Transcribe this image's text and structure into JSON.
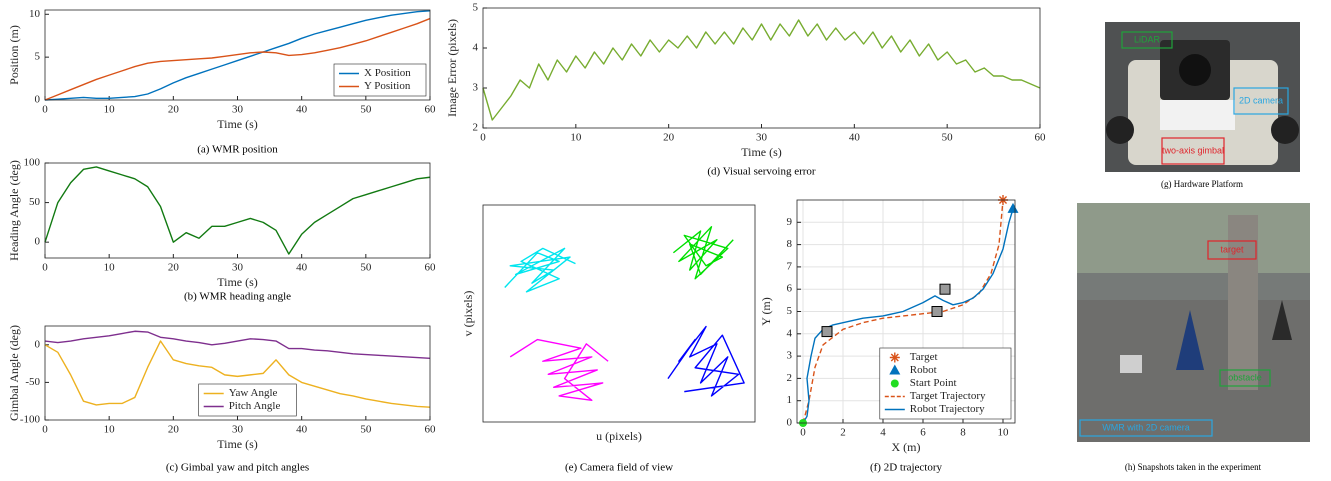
{
  "chart_data": [
    {
      "type": "line",
      "caption": "(a) WMR position",
      "xlabel": "Time (s)",
      "ylabel": "Position (m)",
      "x": [
        0,
        2,
        4,
        6,
        8,
        10,
        12,
        14,
        16,
        18,
        20,
        22,
        24,
        26,
        28,
        30,
        32,
        34,
        36,
        38,
        40,
        42,
        44,
        46,
        48,
        50,
        52,
        54,
        56,
        58,
        60
      ],
      "xlim": [
        0,
        60
      ],
      "xticks": [
        0,
        10,
        20,
        30,
        40,
        50,
        60
      ],
      "ylim": [
        0,
        10.5
      ],
      "yticks": [
        0,
        5,
        10
      ],
      "legend": "lower right",
      "series": [
        {
          "name": "X Position",
          "color": "#0072bd",
          "values": [
            0,
            0.1,
            0.2,
            0.3,
            0.2,
            0.2,
            0.3,
            0.4,
            0.7,
            1.3,
            2.0,
            2.6,
            3.1,
            3.6,
            4.1,
            4.6,
            5.1,
            5.6,
            6.1,
            6.6,
            7.2,
            7.7,
            8.1,
            8.5,
            8.9,
            9.3,
            9.6,
            9.9,
            10.1,
            10.3,
            10.4
          ]
        },
        {
          "name": "Y Position",
          "color": "#d95319",
          "values": [
            0,
            0.6,
            1.2,
            1.8,
            2.4,
            2.9,
            3.4,
            3.9,
            4.3,
            4.5,
            4.6,
            4.7,
            4.8,
            4.9,
            5.1,
            5.3,
            5.5,
            5.6,
            5.5,
            5.2,
            5.3,
            5.5,
            5.8,
            6.1,
            6.5,
            6.9,
            7.4,
            7.9,
            8.4,
            8.9,
            9.5
          ]
        }
      ]
    },
    {
      "type": "line",
      "caption": "(b) WMR heading angle",
      "xlabel": "Time (s)",
      "ylabel": "Heading Angle (deg)",
      "x": [
        0,
        2,
        4,
        6,
        8,
        10,
        12,
        14,
        16,
        18,
        20,
        22,
        24,
        26,
        28,
        30,
        32,
        34,
        36,
        38,
        40,
        42,
        44,
        46,
        48,
        50,
        52,
        54,
        56,
        58,
        60
      ],
      "xlim": [
        0,
        60
      ],
      "xticks": [
        0,
        10,
        20,
        30,
        40,
        50,
        60
      ],
      "ylim": [
        -20,
        100
      ],
      "yticks": [
        0,
        50,
        100
      ],
      "series": [
        {
          "color": "#127a12",
          "values": [
            0,
            50,
            75,
            92,
            95,
            90,
            85,
            80,
            70,
            45,
            0,
            12,
            5,
            20,
            20,
            25,
            30,
            25,
            15,
            -15,
            10,
            25,
            35,
            45,
            55,
            60,
            65,
            70,
            75,
            80,
            82
          ]
        }
      ]
    },
    {
      "type": "line",
      "caption": "(c) Gimbal yaw and pitch angles",
      "xlabel": "Time (s)",
      "ylabel": "Gimbal Angle (deg)",
      "x": [
        0,
        2,
        4,
        6,
        8,
        10,
        12,
        14,
        16,
        18,
        20,
        22,
        24,
        26,
        28,
        30,
        32,
        34,
        36,
        38,
        40,
        42,
        44,
        46,
        48,
        50,
        52,
        54,
        56,
        58,
        60
      ],
      "xlim": [
        0,
        60
      ],
      "xticks": [
        0,
        10,
        20,
        30,
        40,
        50,
        60
      ],
      "ylim": [
        -100,
        25
      ],
      "yticks": [
        -100,
        -50,
        0
      ],
      "legend": "lower center",
      "series": [
        {
          "name": "Yaw Angle",
          "color": "#edb120",
          "values": [
            0,
            -10,
            -40,
            -75,
            -80,
            -78,
            -78,
            -70,
            -30,
            5,
            -20,
            -25,
            -28,
            -30,
            -40,
            -42,
            -40,
            -38,
            -20,
            -40,
            -50,
            -55,
            -60,
            -65,
            -68,
            -72,
            -75,
            -78,
            -80,
            -82,
            -83
          ]
        },
        {
          "name": "Pitch Angle",
          "color": "#7e2f8e",
          "values": [
            5,
            3,
            5,
            8,
            10,
            12,
            15,
            18,
            17,
            10,
            8,
            5,
            3,
            0,
            2,
            5,
            8,
            7,
            5,
            -5,
            -5,
            -7,
            -8,
            -10,
            -12,
            -13,
            -14,
            -15,
            -16,
            -17,
            -18
          ]
        }
      ]
    },
    {
      "type": "line",
      "caption": "(d) Visual servoing error",
      "xlabel": "Time (s)",
      "ylabel": "Image Error (pixels)",
      "x": [
        0,
        1,
        2,
        3,
        4,
        5,
        6,
        7,
        8,
        9,
        10,
        11,
        12,
        13,
        14,
        15,
        16,
        17,
        18,
        19,
        20,
        21,
        22,
        23,
        24,
        25,
        26,
        27,
        28,
        29,
        30,
        31,
        32,
        33,
        34,
        35,
        36,
        37,
        38,
        39,
        40,
        41,
        42,
        43,
        44,
        45,
        46,
        47,
        48,
        49,
        50,
        51,
        52,
        53,
        54,
        55,
        56,
        57,
        58,
        59,
        60
      ],
      "xlim": [
        0,
        60
      ],
      "xticks": [
        0,
        10,
        20,
        30,
        40,
        50,
        60
      ],
      "ylim": [
        2,
        5
      ],
      "yticks": [
        2,
        3,
        4,
        5
      ],
      "series": [
        {
          "color": "#77ac30",
          "values": [
            3.0,
            2.2,
            2.5,
            2.8,
            3.2,
            3.0,
            3.6,
            3.2,
            3.7,
            3.4,
            3.8,
            3.5,
            3.9,
            3.6,
            4.0,
            3.7,
            4.1,
            3.8,
            4.2,
            3.9,
            4.2,
            4.0,
            4.3,
            4.0,
            4.4,
            4.1,
            4.4,
            4.1,
            4.5,
            4.2,
            4.6,
            4.2,
            4.6,
            4.3,
            4.7,
            4.3,
            4.6,
            4.2,
            4.5,
            4.2,
            4.4,
            4.1,
            4.4,
            4.0,
            4.3,
            3.9,
            4.2,
            3.8,
            4.1,
            3.7,
            3.9,
            3.6,
            3.7,
            3.4,
            3.5,
            3.3,
            3.3,
            3.2,
            3.2,
            3.1,
            3.0
          ]
        }
      ]
    },
    {
      "type": "line",
      "caption": "(e) Camera field of view",
      "xlabel": "u (pixels)",
      "ylabel": "v (pixels)",
      "xlim": [
        0,
        100
      ],
      "ylim": [
        0,
        100
      ],
      "series": [
        {
          "color": "#00e5ee",
          "x": [
            8,
            20,
            28,
            12,
            30,
            18,
            26,
            10,
            32,
            16,
            28,
            14,
            22,
            34
          ],
          "values": [
            62,
            78,
            74,
            68,
            80,
            64,
            70,
            72,
            76,
            60,
            66,
            74,
            80,
            73
          ]
        },
        {
          "color": "#00e000",
          "x": [
            70,
            80,
            76,
            86,
            72,
            84,
            78,
            90,
            74,
            82,
            88,
            76,
            80,
            92
          ],
          "values": [
            78,
            88,
            70,
            84,
            74,
            90,
            66,
            80,
            86,
            72,
            76,
            82,
            68,
            84
          ]
        },
        {
          "color": "#ff00ff",
          "x": [
            10,
            20,
            36,
            22,
            40,
            24,
            42,
            26,
            44,
            28,
            40,
            30,
            38,
            46
          ],
          "values": [
            30,
            38,
            34,
            28,
            30,
            22,
            24,
            16,
            18,
            12,
            10,
            20,
            36,
            28
          ]
        },
        {
          "color": "#0000ff",
          "x": [
            68,
            78,
            72,
            82,
            76,
            86,
            80,
            90,
            84,
            94,
            78,
            88,
            96,
            74
          ],
          "values": [
            20,
            38,
            28,
            44,
            30,
            36,
            18,
            30,
            12,
            22,
            25,
            40,
            18,
            14
          ]
        }
      ]
    },
    {
      "type": "line",
      "caption": "(f) 2D trajectory",
      "xlabel": "X (m)",
      "ylabel": "Y (m)",
      "xlim": [
        -0.3,
        10.6
      ],
      "xticks": [
        0,
        2,
        4,
        6,
        8,
        10
      ],
      "ylim": [
        0,
        10
      ],
      "yticks": [
        0,
        1,
        2,
        3,
        4,
        5,
        6,
        7,
        8,
        9
      ],
      "grid": true,
      "legend": "lower right",
      "series": [
        {
          "name": "Target",
          "color": "#d95319",
          "marker": "star",
          "x": [
            10
          ],
          "values": [
            10
          ]
        },
        {
          "name": "Robot",
          "color": "#0072bd",
          "marker": "triangle",
          "x": [
            10.5
          ],
          "values": [
            9.6
          ]
        },
        {
          "name": "Start Point",
          "color": "#22dd22",
          "marker": "circle",
          "x": [
            0
          ],
          "values": [
            0
          ]
        },
        {
          "name": "Target Trajectory",
          "color": "#d95319",
          "dash": true,
          "x": [
            0,
            0.3,
            0.6,
            1,
            2,
            3,
            4,
            5,
            6,
            7,
            8,
            8.8,
            9.4,
            9.8,
            10
          ],
          "values": [
            0,
            1,
            2.5,
            3.5,
            4.2,
            4.5,
            4.7,
            4.8,
            4.9,
            5,
            5.3,
            5.8,
            6.7,
            8,
            10
          ]
        },
        {
          "name": "Robot Trajectory",
          "color": "#0072bd",
          "x": [
            0,
            0.2,
            0.3,
            0.2,
            0.4,
            0.6,
            1,
            1.5,
            2,
            3,
            4,
            5,
            6,
            6.6,
            7,
            7.5,
            8,
            8.5,
            9,
            9.5,
            10,
            10.3,
            10.5
          ],
          "values": [
            0,
            0.3,
            1,
            2,
            3,
            3.8,
            4.2,
            4.4,
            4.5,
            4.7,
            4.8,
            5,
            5.4,
            5.7,
            5.5,
            5.3,
            5.4,
            5.6,
            6,
            6.7,
            7.8,
            9,
            9.6
          ]
        },
        {
          "color": "#9a9a9a",
          "marker": "square",
          "x": [
            1.2,
            6.7,
            7.1
          ],
          "values": [
            4.1,
            5,
            6
          ]
        }
      ]
    }
  ],
  "photos": [
    {
      "caption": "(g) Hardware Platform",
      "labels": [
        "LiDAR",
        "2D camera",
        "two-axis gimbal"
      ]
    },
    {
      "caption": "(h) Snapshots taken in the experiment",
      "labels": [
        "target",
        "obstacle",
        "WMR with 2D camera"
      ]
    }
  ]
}
